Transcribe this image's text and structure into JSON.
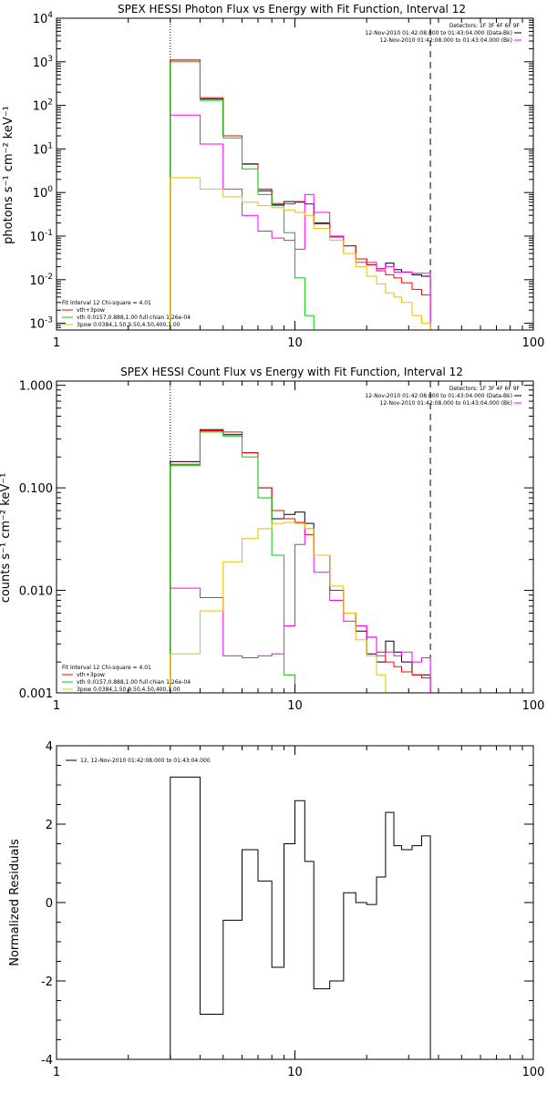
{
  "chart_data": [
    {
      "type": "line",
      "title": "SPEX HESSI Photon Flux vs Energy with Fit Function, Interval 12",
      "ylabel": "photons s⁻¹ cm⁻² keV⁻¹",
      "xlabel": "",
      "xscale": "log",
      "yscale": "log",
      "xlim": [
        1,
        100
      ],
      "ylim": [
        0.0007,
        10000
      ],
      "x_ticks": [
        {
          "v": 1,
          "label": "1"
        },
        {
          "v": 10,
          "label": "10"
        },
        {
          "v": 100,
          "label": "100"
        }
      ],
      "y_ticks": [
        {
          "v": 0.001,
          "b": "10",
          "e": "-3"
        },
        {
          "v": 0.01,
          "b": "10",
          "e": "-2"
        },
        {
          "v": 0.1,
          "b": "10",
          "e": "-1"
        },
        {
          "v": 1,
          "b": "10",
          "e": "0"
        },
        {
          "v": 10,
          "b": "10",
          "e": "1"
        },
        {
          "v": 100,
          "b": "10",
          "e": "2"
        },
        {
          "v": 1000,
          "b": "10",
          "e": "3"
        },
        {
          "v": 10000,
          "b": "10",
          "e": "4"
        }
      ],
      "vlines": [
        {
          "x": 3.0,
          "style": "dotted"
        },
        {
          "x": 37.0,
          "style": "dashed"
        }
      ],
      "legend_top": [
        "Detectors: 1F 3F 4F 6F 9F",
        "12-Nov-2010 01:42:08.000 to 01:43:04.000 (Data-Bk)",
        "12-Nov-2010 01:42:08.000 to 01:43:04.000 (Bk)"
      ],
      "legend_bottom": [
        {
          "text": "Fit Interval 12   Chi-square = 4.01",
          "color": ""
        },
        {
          "text": "vth+3pow",
          "color": "#ff0000"
        },
        {
          "text": "vth 0.0157,0.888,1.00  full chian 1.26e-04",
          "color": "#00cc00"
        },
        {
          "text": "3pow 0.0384,1.50,9.50,4.50,400,1.00",
          "color": "#e8c000"
        }
      ],
      "edges": [
        3.0,
        4.0,
        5.0,
        6.0,
        7.0,
        8.0,
        9.0,
        10.0,
        11.0,
        12.0,
        14.0,
        16.0,
        18.0,
        20.0,
        22.0,
        24.0,
        26.0,
        28.0,
        31.0,
        34.0,
        37.0
      ],
      "series": [
        {
          "name": "Data-Bk",
          "color": "#000000",
          "values": [
            1100,
            140,
            20,
            4.5,
            1.1,
            0.52,
            0.62,
            0.6,
            0.55,
            0.2,
            0.095,
            0.06,
            0.03,
            0.022,
            0.018,
            0.024,
            0.017,
            0.015,
            0.013,
            0.012
          ]
        },
        {
          "name": "vth+3pow",
          "color": "#ff0000",
          "values": [
            1100,
            150,
            20,
            4.6,
            1.2,
            0.56,
            0.55,
            0.62,
            0.55,
            0.19,
            0.095,
            0.06,
            0.03,
            0.022,
            0.016,
            0.013,
            0.011,
            0.0085,
            0.006,
            0.0045
          ]
        },
        {
          "name": "Bk",
          "color": "#ff00ff",
          "values": [
            60,
            13,
            1.2,
            0.3,
            0.13,
            0.09,
            0.08,
            0.05,
            0.9,
            0.35,
            0.1,
            0.04,
            0.025,
            0.025,
            0.018,
            0.02,
            0.015,
            0.015,
            0.014,
            0.014
          ]
        },
        {
          "name": "vth",
          "color": "#00cc00",
          "values": [
            1000,
            130,
            18,
            3.5,
            0.9,
            0.5,
            0.12,
            0.011,
            0.0015,
            null,
            null,
            null,
            null,
            null,
            null,
            null,
            null,
            null,
            null,
            null
          ]
        },
        {
          "name": "3pow",
          "color": "#e8c000",
          "values": [
            2.2,
            1.2,
            0.8,
            0.6,
            0.5,
            0.45,
            0.4,
            0.35,
            0.3,
            0.15,
            0.08,
            0.04,
            0.02,
            0.012,
            0.008,
            0.005,
            0.004,
            0.003,
            0.0015,
            0.001
          ]
        }
      ]
    },
    {
      "type": "line",
      "title": "SPEX HESSI Count Flux vs Energy with Fit Function, Interval 12",
      "ylabel": "counts s⁻¹ cm⁻² keV⁻¹",
      "xlabel": "",
      "xscale": "log",
      "yscale": "log",
      "xlim": [
        1,
        100
      ],
      "ylim": [
        0.001,
        1.1
      ],
      "x_ticks": [
        {
          "v": 1,
          "label": "1"
        },
        {
          "v": 10,
          "label": "10"
        },
        {
          "v": 100,
          "label": "100"
        }
      ],
      "y_ticks": [
        {
          "v": 0.001,
          "label": "0.001"
        },
        {
          "v": 0.01,
          "label": "0.010"
        },
        {
          "v": 0.1,
          "label": "0.100"
        },
        {
          "v": 1,
          "label": "1.000"
        }
      ],
      "vlines": [
        {
          "x": 3.0,
          "style": "dotted"
        },
        {
          "x": 37.0,
          "style": "dashed"
        }
      ],
      "legend_top": [
        "Detectors: 1F 3F 4F 6F 9F",
        "12-Nov-2010 01:42:08.000 to 01:43:04.000 (Data-Bk)",
        "12-Nov-2010 01:42:08.000 to 01:43:04.000 (Bk)"
      ],
      "legend_bottom": [
        {
          "text": "Fit Interval 12   Chi-square = 4.01",
          "color": ""
        },
        {
          "text": "vth+3pow",
          "color": "#ff0000"
        },
        {
          "text": "vth 0.0157,0.888,1.00  full chian 1.26e-04",
          "color": "#00cc00"
        },
        {
          "text": "3pow 0.0384,1.50,9.50,4.50,400,1.00",
          "color": "#e8c000"
        }
      ],
      "edges": [
        3.0,
        4.0,
        5.0,
        6.0,
        7.0,
        8.0,
        9.0,
        10.0,
        11.0,
        12.0,
        14.0,
        16.0,
        18.0,
        20.0,
        22.0,
        24.0,
        26.0,
        28.0,
        31.0,
        34.0,
        37.0
      ],
      "series": [
        {
          "name": "Data-Bk",
          "color": "#000000",
          "values": [
            0.18,
            0.37,
            0.33,
            0.22,
            0.1,
            0.05,
            0.055,
            0.058,
            0.045,
            0.022,
            0.01,
            0.006,
            0.004,
            0.0024,
            0.002,
            0.0032,
            0.0025,
            0.002,
            0.0015,
            0.0015
          ]
        },
        {
          "name": "vth+3pow",
          "color": "#ff0000",
          "values": [
            0.17,
            0.36,
            0.35,
            0.22,
            0.1,
            0.06,
            0.05,
            0.046,
            0.035,
            0.022,
            0.01,
            0.006,
            0.0045,
            0.0035,
            0.0025,
            0.002,
            0.0018,
            0.0016,
            0.0015,
            0.0014
          ]
        },
        {
          "name": "Bk",
          "color": "#ff00ff",
          "values": [
            0.0105,
            0.0085,
            0.0023,
            0.0022,
            0.0023,
            0.0024,
            0.0045,
            0.028,
            0.04,
            0.015,
            0.008,
            0.005,
            0.0045,
            0.0035,
            0.0023,
            0.0025,
            0.0023,
            0.0025,
            0.002,
            0.0022
          ]
        },
        {
          "name": "vth",
          "color": "#00cc00",
          "values": [
            0.165,
            0.35,
            0.32,
            0.2,
            0.08,
            0.022,
            0.0015,
            null,
            null,
            null,
            null,
            null,
            null,
            null,
            null,
            null,
            null,
            null,
            null,
            null
          ]
        },
        {
          "name": "3pow",
          "color": "#e8c000",
          "values": [
            0.0024,
            0.0063,
            0.019,
            0.032,
            0.04,
            0.045,
            0.046,
            0.045,
            0.04,
            0.022,
            0.011,
            0.006,
            0.0033,
            0.0023,
            0.0015,
            null,
            null,
            null,
            null,
            null
          ]
        }
      ]
    },
    {
      "type": "line",
      "title": "",
      "ylabel": "Normalized Residuals",
      "xlabel": "",
      "xscale": "log",
      "yscale": "linear",
      "xlim": [
        1,
        100
      ],
      "ylim": [
        -4,
        4
      ],
      "x_ticks": [
        {
          "v": 1,
          "label": "1"
        },
        {
          "v": 10,
          "label": "10"
        },
        {
          "v": 100,
          "label": "100"
        }
      ],
      "y_ticks": [
        {
          "v": -4,
          "label": "-4"
        },
        {
          "v": -2,
          "label": "-2"
        },
        {
          "v": 0,
          "label": "0"
        },
        {
          "v": 2,
          "label": "2"
        },
        {
          "v": 4,
          "label": "4"
        }
      ],
      "legend_top_left": "12, 12-Nov-2010 01:42:08.000 to 01:43:04.000",
      "edges": [
        3.0,
        4.0,
        5.0,
        6.0,
        7.0,
        8.0,
        9.0,
        10.0,
        11.0,
        12.0,
        14.0,
        16.0,
        18.0,
        20.0,
        22.0,
        24.0,
        26.0,
        28.0,
        31.0,
        34.0,
        37.0
      ],
      "series": [
        {
          "name": "12, 12-Nov-2010 01:42:08.000 to 01:43:04.000",
          "color": "#000000",
          "values": [
            3.2,
            -2.85,
            -0.45,
            1.35,
            0.55,
            -1.65,
            1.5,
            2.6,
            1.05,
            -2.2,
            -2.0,
            0.25,
            0.0,
            -0.05,
            0.65,
            2.3,
            1.45,
            1.35,
            1.45,
            1.7
          ]
        }
      ]
    }
  ]
}
